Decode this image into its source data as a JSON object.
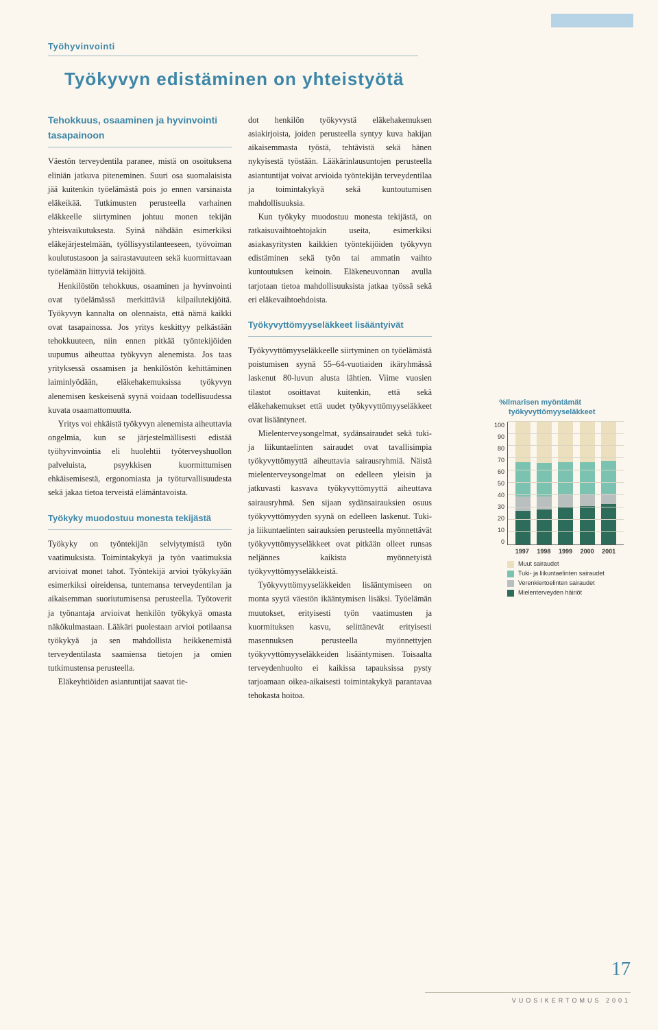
{
  "section_label": "Työhyvinvointi",
  "main_title": "Työkyvyn edistäminen on yhteistyötä",
  "lead": "Tehokkuus, osaaminen ja hyvinvointi tasapainoon",
  "col1": {
    "p1": "Väestön terveydentila paranee, mistä on osoituksena eliniän jatkuva piteneminen. Suuri osa suomalaisista jää kuitenkin työelämästä pois jo ennen varsinaista eläkeikää. Tutkimusten perusteella varhainen eläkkeelle siirtyminen johtuu monen tekijän yhteisvaikutuksesta. Syinä nähdään esimerkiksi eläkejärjestelmään, työllisyystilanteeseen, työvoiman koulutustasoon ja sairastavuuteen sekä kuormittavaan työelämään liittyviä tekijöitä.",
    "p2": "Henkilöstön tehokkuus, osaaminen ja hyvinvointi ovat työelämässä merkittäviä kilpailutekijöitä. Työkyvyn kannalta on olennaista, että nämä kaikki ovat tasapainossa. Jos yritys keskittyy pelkästään tehokkuuteen, niin ennen pitkää työntekijöiden uupumus aiheuttaa työkyvyn alenemista. Jos taas yrityksessä osaamisen ja henkilöstön kehittäminen laiminlyödään, eläkehakemuksissa työkyvyn alenemisen keskeisenä syynä voidaan todellisuudessa kuvata osaamattomuutta.",
    "p3": "Yritys voi ehkäistä työkyvyn alenemista aiheuttavia ongelmia, kun se järjestelmällisesti edistää työhyvinvointia eli huolehtii työterveyshuollon palveluista, psyykkisen kuormittumisen ehkäisemisestä, ergonomiasta ja työturvallisuudesta sekä jakaa tietoa terveistä elämäntavoista.",
    "sub1": "Työkyky muodostuu monesta tekijästä",
    "p4": "Työkyky on työntekijän selviytymistä työn vaatimuksista. Toimintakykyä ja työn vaatimuksia arvioivat monet tahot. Työntekijä arvioi työkykyään esimerkiksi oireidensa, tuntemansa terveydentilan ja aikaisemman suoriutumisensa perusteella. Työtoverit ja työnantaja arvioivat henkilön työkykyä omasta näkökulmastaan. Lääkäri puolestaan arvioi potilaansa työkykyä ja sen mahdollista heikkenemistä terveydentilasta saamiensa tietojen ja omien tutkimustensa perusteella.",
    "p5": "Eläkeyhtiöiden asiantuntijat saavat tie-"
  },
  "col2": {
    "p1": "dot henkilön työkyvystä eläkehakemuksen asiakirjoista, joiden perusteella syntyy kuva hakijan aikaisemmasta työstä, tehtävistä sekä hänen nykyisestä työstään. Lääkärinlausuntojen perusteella asiantuntijat voivat arvioida työntekijän terveydentilaa ja toimintakykyä sekä kuntoutumisen mahdollisuuksia.",
    "p2": "Kun työkyky muodostuu monesta tekijästä, on ratkaisuvaihtoehtojakin useita, esimerkiksi asiakasyritysten kaikkien työntekijöiden työkyvyn edistäminen sekä työn tai ammatin vaihto kuntoutuksen keinoin. Eläkeneuvonnan avulla tarjotaan tietoa mahdollisuuksista jatkaa työssä sekä eri eläkevaihtoehdoista.",
    "sub1": "Työkyvyttömyyseläkkeet lisääntyivät",
    "p3": "Työkyvyttömyyseläkkeelle siirtyminen on työelämästä poistumisen syynä 55–64-vuotiaiden ikäryhmässä laskenut 80-luvun alusta lähtien. Viime vuosien tilastot osoittavat kuitenkin, että sekä eläkehakemukset että uudet työkyvyttömyyseläkkeet ovat lisääntyneet.",
    "p4": "Mielenterveysongelmat, sydänsairaudet sekä tuki- ja liikuntaelinten sairaudet ovat tavallisimpia työkyvyttömyyttä aiheuttavia sairausryhmiä. Näistä mielenterveysongelmat on edelleen yleisin ja jatkuvasti kasvava työkyvyttömyyttä aiheuttava sairausryhmä. Sen sijaan sydänsairauksien osuus työkyvyttömyyden syynä on edelleen laskenut. Tuki- ja liikuntaelinten sairauksien perusteella myönnettävät työkyvyttömyyseläkkeet ovat pitkään olleet runsas neljännes kaikista myönnetyistä työkyvyttömyyseläkkeistä.",
    "p5": "Työkyvyttömyyseläkkeiden lisääntymiseen on monta syytä väestön ikääntymisen lisäksi. Työelämän muutokset, erityisesti työn vaatimusten ja kuormituksen kasvu, selittänevät erityisesti masennuksen perusteella myönnettyjen työkyvyttömyyseläkkeiden lisääntymisen. Toisaalta terveydenhuolto ei kaikissa tapauksissa pysty tarjoamaan oikea-aikaisesti toimintakykyä parantavaa tehokasta hoitoa."
  },
  "chart": {
    "title_prefix": "%",
    "title": "Ilmarisen myöntämät työkyvyttömyyseläkkeet",
    "ylim": [
      0,
      100
    ],
    "yticks": [
      0,
      10,
      20,
      30,
      40,
      50,
      60,
      70,
      80,
      90,
      100
    ],
    "years": [
      "1997",
      "1998",
      "1999",
      "2000",
      "2001"
    ],
    "series": [
      {
        "key": "muut",
        "label": "Muut sairaudet",
        "color": "#ecdfbd"
      },
      {
        "key": "tuki",
        "label": "Tuki- ja liikuntaelinten sairaudet",
        "color": "#7bc2b0"
      },
      {
        "key": "veren",
        "label": "Verenkiertoelinten sairaudet",
        "color": "#b9bfbf"
      },
      {
        "key": "mieli",
        "label": "Mielenterveyden häiriöt",
        "color": "#2d6b5a"
      }
    ],
    "data": {
      "1997": {
        "mieli": 27,
        "veren": 12,
        "tuki": 28,
        "muut": 33
      },
      "1998": {
        "mieli": 28,
        "veren": 11,
        "tuki": 27,
        "muut": 34
      },
      "1999": {
        "mieli": 30,
        "veren": 10,
        "tuki": 27,
        "muut": 33
      },
      "2000": {
        "mieli": 31,
        "veren": 9,
        "tuki": 27,
        "muut": 33
      },
      "2001": {
        "mieli": 33,
        "veren": 8,
        "tuki": 27,
        "muut": 32
      }
    },
    "grid_color": "#d9d4c5",
    "axis_color": "#555555",
    "label_fontsize": 9,
    "title_fontsize": 11
  },
  "page_number": "17",
  "footer": "VUOSIKERTOMUS 2001"
}
